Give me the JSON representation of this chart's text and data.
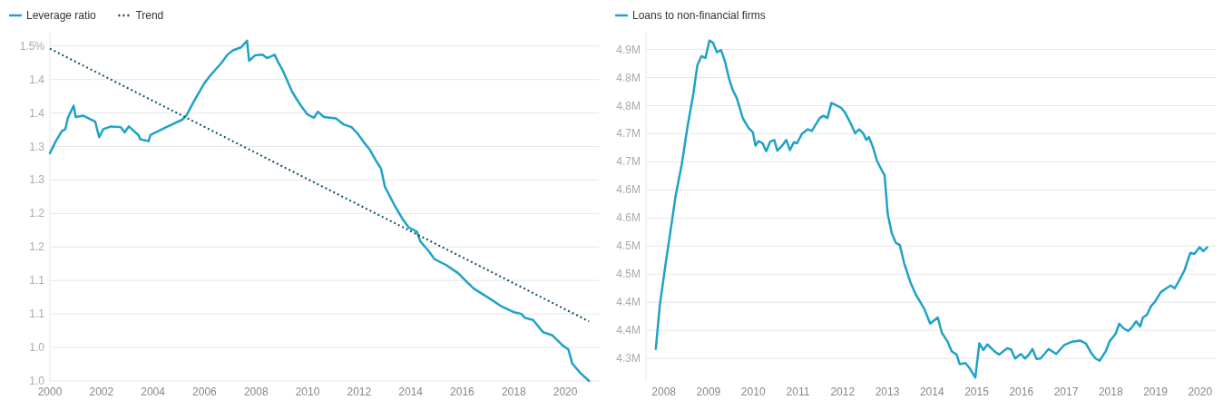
{
  "chart_data": [
    {
      "type": "line",
      "legend": "top left",
      "grid": "y",
      "marker": "none",
      "xlim": [
        2000,
        2021.3
      ],
      "ylim": [
        1.0,
        1.52
      ],
      "xticks": [
        2000,
        2002,
        2004,
        2006,
        2008,
        2010,
        2012,
        2014,
        2016,
        2018,
        2020
      ],
      "yticks": [
        {
          "value": 1.0,
          "label": "1.0"
        },
        {
          "value": 1.05,
          "label": "1.0"
        },
        {
          "value": 1.1,
          "label": "1.1"
        },
        {
          "value": 1.15,
          "label": "1.1"
        },
        {
          "value": 1.2,
          "label": "1.2"
        },
        {
          "value": 1.25,
          "label": "1.2"
        },
        {
          "value": 1.3,
          "label": "1.3"
        },
        {
          "value": 1.35,
          "label": "1.3"
        },
        {
          "value": 1.4,
          "label": "1.4"
        },
        {
          "value": 1.45,
          "label": "1.4"
        },
        {
          "value": 1.5,
          "label": "1.5%"
        }
      ],
      "series": [
        {
          "name": "Leverage ratio",
          "color": "#1fa2c8",
          "line_style": "solid",
          "x": [
            2000,
            2000.23,
            2000.46,
            2000.6,
            2000.7,
            2000.92,
            2001.0,
            2001.3,
            2001.76,
            2001.91,
            2002.07,
            2002.37,
            2002.75,
            2002.9,
            2003.06,
            2003.44,
            2003.5,
            2003.83,
            2003.9,
            2004.52,
            2005.13,
            2005.29,
            2005.58,
            2005.97,
            2006.2,
            2006.66,
            2006.89,
            2007.12,
            2007.42,
            2007.65,
            2007.73,
            2007.96,
            2008.26,
            2008.42,
            2008.72,
            2008.87,
            2009.03,
            2009.41,
            2009.72,
            2009.99,
            2010.25,
            2010.4,
            2010.63,
            2011.1,
            2011.4,
            2011.7,
            2011.93,
            2012.17,
            2012.4,
            2012.7,
            2012.85,
            2013.0,
            2013.39,
            2013.7,
            2013.93,
            2014.24,
            2014.38,
            2014.7,
            2014.92,
            2015.38,
            2015.84,
            2016.2,
            2016.45,
            2017.06,
            2017.5,
            2017.98,
            2018.3,
            2018.44,
            2018.75,
            2019.13,
            2019.5,
            2019.74,
            2019.9,
            2020.12,
            2020.27,
            2020.58,
            2020.92
          ],
          "values": [
            1.34,
            1.358,
            1.373,
            1.376,
            1.393,
            1.411,
            1.394,
            1.396,
            1.387,
            1.364,
            1.376,
            1.38,
            1.379,
            1.371,
            1.38,
            1.367,
            1.361,
            1.358,
            1.367,
            1.379,
            1.39,
            1.396,
            1.417,
            1.443,
            1.455,
            1.475,
            1.487,
            1.494,
            1.498,
            1.508,
            1.478,
            1.486,
            1.487,
            1.482,
            1.487,
            1.475,
            1.464,
            1.431,
            1.412,
            1.398,
            1.393,
            1.402,
            1.394,
            1.392,
            1.383,
            1.379,
            1.37,
            1.357,
            1.346,
            1.326,
            1.317,
            1.29,
            1.261,
            1.241,
            1.229,
            1.223,
            1.208,
            1.194,
            1.182,
            1.173,
            1.161,
            1.147,
            1.138,
            1.123,
            1.112,
            1.103,
            1.1,
            1.094,
            1.091,
            1.073,
            1.068,
            1.059,
            1.053,
            1.047,
            1.026,
            1.012,
            1.0
          ]
        },
        {
          "name": "Trend",
          "color": "#0d4f66",
          "line_style": "dotted",
          "x": [
            2000,
            2020.92
          ],
          "values": [
            1.496,
            1.089
          ]
        }
      ]
    },
    {
      "type": "line",
      "legend": "top left",
      "grid": "y",
      "marker": "none",
      "xlim": [
        2007.6,
        2020.37
      ],
      "ylim": [
        4.31,
        4.93
      ],
      "xticks": [
        2008,
        2009,
        2010,
        2011,
        2012,
        2013,
        2014,
        2015,
        2016,
        2017,
        2018,
        2019,
        2020
      ],
      "yticks": [
        {
          "value": 4.35,
          "label": "4.3M"
        },
        {
          "value": 4.4,
          "label": "4.4M"
        },
        {
          "value": 4.45,
          "label": "4.4M"
        },
        {
          "value": 4.5,
          "label": "4.5M"
        },
        {
          "value": 4.55,
          "label": "4.5M"
        },
        {
          "value": 4.6,
          "label": "4.6M"
        },
        {
          "value": 4.65,
          "label": "4.6M"
        },
        {
          "value": 4.7,
          "label": "4.7M"
        },
        {
          "value": 4.75,
          "label": "4.7M"
        },
        {
          "value": 4.8,
          "label": "4.8M"
        },
        {
          "value": 4.85,
          "label": "4.8M"
        },
        {
          "value": 4.9,
          "label": "4.9M"
        }
      ],
      "series": [
        {
          "name": "Loans to non-financial firms",
          "color": "#1fa2c8",
          "line_style": "solid",
          "x": [
            2007.82,
            2007.91,
            2008.04,
            2008.18,
            2008.26,
            2008.4,
            2008.53,
            2008.66,
            2008.75,
            2008.84,
            2008.93,
            2009.02,
            2009.1,
            2009.19,
            2009.28,
            2009.37,
            2009.46,
            2009.54,
            2009.63,
            2009.77,
            2009.9,
            2009.99,
            2010.05,
            2010.12,
            2010.21,
            2010.29,
            2010.38,
            2010.47,
            2010.54,
            2010.65,
            2010.74,
            2010.82,
            2010.91,
            2010.98,
            2011.09,
            2011.22,
            2011.31,
            2011.49,
            2011.57,
            2011.66,
            2011.75,
            2011.88,
            2011.97,
            2012.06,
            2012.19,
            2012.28,
            2012.37,
            2012.46,
            2012.53,
            2012.59,
            2012.68,
            2012.77,
            2012.85,
            2012.94,
            2013.01,
            2013.1,
            2013.19,
            2013.28,
            2013.38,
            2013.52,
            2013.63,
            2013.83,
            2013.96,
            2014.13,
            2014.22,
            2014.35,
            2014.44,
            2014.55,
            2014.62,
            2014.75,
            2014.84,
            2014.97,
            2015.06,
            2015.15,
            2015.24,
            2015.41,
            2015.5,
            2015.68,
            2015.77,
            2015.86,
            2015.99,
            2016.08,
            2016.16,
            2016.25,
            2016.34,
            2016.43,
            2016.61,
            2016.78,
            2016.96,
            2017.14,
            2017.31,
            2017.44,
            2017.58,
            2017.66,
            2017.75,
            2017.89,
            2017.97,
            2018.11,
            2018.19,
            2018.28,
            2018.39,
            2018.46,
            2018.57,
            2018.66,
            2018.72,
            2018.81,
            2018.9,
            2018.99,
            2019.12,
            2019.25,
            2019.34,
            2019.43,
            2019.52,
            2019.65,
            2019.78,
            2019.87,
            2019.99,
            2020.07,
            2020.16
          ],
          "values": [
            4.367,
            4.445,
            4.519,
            4.594,
            4.638,
            4.695,
            4.763,
            4.821,
            4.872,
            4.888,
            4.885,
            4.916,
            4.912,
            4.895,
            4.899,
            4.878,
            4.848,
            4.828,
            4.814,
            4.777,
            4.76,
            4.753,
            4.729,
            4.737,
            4.733,
            4.719,
            4.736,
            4.739,
            4.72,
            4.729,
            4.739,
            4.721,
            4.735,
            4.733,
            4.75,
            4.758,
            4.755,
            4.778,
            4.782,
            4.778,
            4.805,
            4.8,
            4.796,
            4.787,
            4.767,
            4.751,
            4.758,
            4.751,
            4.739,
            4.744,
            4.726,
            4.702,
            4.689,
            4.676,
            4.607,
            4.573,
            4.556,
            4.552,
            4.519,
            4.485,
            4.465,
            4.438,
            4.412,
            4.423,
            4.396,
            4.38,
            4.363,
            4.357,
            4.34,
            4.342,
            4.333,
            4.316,
            4.377,
            4.365,
            4.375,
            4.362,
            4.357,
            4.368,
            4.366,
            4.35,
            4.358,
            4.35,
            4.356,
            4.367,
            4.349,
            4.35,
            4.367,
            4.358,
            4.374,
            4.38,
            4.382,
            4.377,
            4.358,
            4.35,
            4.346,
            4.363,
            4.38,
            4.394,
            4.412,
            4.404,
            4.399,
            4.404,
            4.416,
            4.407,
            4.423,
            4.428,
            4.443,
            4.451,
            4.468,
            4.475,
            4.48,
            4.475,
            4.487,
            4.507,
            4.538,
            4.536,
            4.548,
            4.541,
            4.548
          ]
        }
      ]
    }
  ]
}
